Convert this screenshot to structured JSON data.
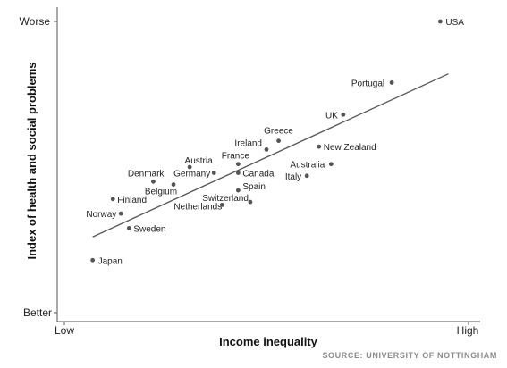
{
  "chart_data": {
    "type": "scatter",
    "title": "",
    "xlabel": "Income inequality",
    "ylabel": "Index of health and social problems",
    "x_tick_labels": {
      "low": "Low",
      "high": "High"
    },
    "y_tick_labels": {
      "top": "Worse",
      "bottom": "Better"
    },
    "xlim": [
      0,
      100
    ],
    "ylim": [
      0,
      100
    ],
    "grid": false,
    "source": "SOURCE:  UNIVERSITY OF NOTTINGHAM",
    "points": [
      {
        "name": "USA",
        "x": 93,
        "y": 100
      },
      {
        "name": "Portugal",
        "x": 81,
        "y": 79
      },
      {
        "name": "UK",
        "x": 69,
        "y": 68
      },
      {
        "name": "Greece",
        "x": 53,
        "y": 59
      },
      {
        "name": "Ireland",
        "x": 50,
        "y": 56
      },
      {
        "name": "New Zealand",
        "x": 63,
        "y": 57
      },
      {
        "name": "Australia",
        "x": 66,
        "y": 51
      },
      {
        "name": "Italy",
        "x": 60,
        "y": 47
      },
      {
        "name": "France",
        "x": 43,
        "y": 51
      },
      {
        "name": "Canada",
        "x": 43,
        "y": 48
      },
      {
        "name": "Austria",
        "x": 31,
        "y": 50
      },
      {
        "name": "Germany",
        "x": 37,
        "y": 48
      },
      {
        "name": "Denmark",
        "x": 22,
        "y": 45
      },
      {
        "name": "Belgium",
        "x": 27,
        "y": 44
      },
      {
        "name": "Spain",
        "x": 43,
        "y": 42
      },
      {
        "name": "Switzerland",
        "x": 46,
        "y": 38
      },
      {
        "name": "Netherlands",
        "x": 39,
        "y": 37
      },
      {
        "name": "Finland",
        "x": 12,
        "y": 39
      },
      {
        "name": "Norway",
        "x": 14,
        "y": 34
      },
      {
        "name": "Sweden",
        "x": 16,
        "y": 29
      },
      {
        "name": "Japan",
        "x": 7,
        "y": 18
      }
    ],
    "trendline": {
      "x": [
        7,
        95
      ],
      "y": [
        26,
        82
      ]
    }
  }
}
